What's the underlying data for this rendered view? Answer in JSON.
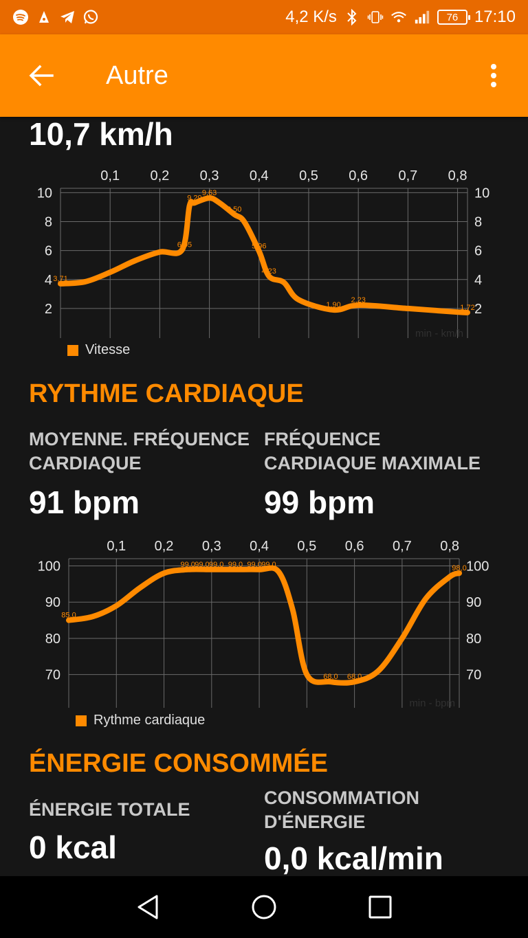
{
  "status_bar": {
    "speed": "4,2 K/s",
    "battery": "76",
    "time": "17:10",
    "icons": [
      "spotify-icon",
      "notification-icon",
      "telegram-icon",
      "whatsapp-icon",
      "bluetooth-icon",
      "vibrate-icon",
      "wifi-icon",
      "signal-icon"
    ]
  },
  "app_bar": {
    "title": "Autre",
    "back_icon": "arrow-left-icon",
    "menu_icon": "more-vert-icon"
  },
  "speed_section": {
    "value": "10,7 km/h"
  },
  "heart_section": {
    "title": "RYTHME CARDIAQUE",
    "avg_label": "MOYENNE. FRÉQUENCE CARDIAQUE",
    "avg_value": "91 bpm",
    "max_label": "FRÉQUENCE CARDIAQUE MAXIMALE",
    "max_value": "99 bpm"
  },
  "energy_section": {
    "title": "ÉNERGIE CONSOMMÉE",
    "total_label": "ÉNERGIE TOTALE",
    "total_value": "0 kcal",
    "rate_label": "CONSOMMATION D'ÉNERGIE",
    "rate_value": "0,0 kcal/min"
  },
  "colors": {
    "accent": "#ff8a00",
    "status_bar": "#e86a00",
    "background": "#161616",
    "grid": "#6a6a6a"
  },
  "chart_data": [
    {
      "type": "line",
      "name": "speed",
      "legend": "Vitesse",
      "unit_label": "min - km/h",
      "x_ticks": [
        "0,1",
        "0,2",
        "0,3",
        "0,4",
        "0,5",
        "0,6",
        "0,7",
        "0,8"
      ],
      "y_ticks": [
        "10",
        "8",
        "6",
        "4",
        "2"
      ],
      "xlim": [
        0.0,
        0.82
      ],
      "ylim": [
        1.0,
        10.3
      ],
      "grid": true,
      "legend_position": "bottom-left",
      "series": [
        {
          "name": "Vitesse",
          "x": [
            0.0,
            0.05,
            0.1,
            0.15,
            0.2,
            0.245,
            0.26,
            0.27,
            0.3,
            0.32,
            0.35,
            0.37,
            0.4,
            0.42,
            0.45,
            0.48,
            0.55,
            0.6,
            0.7,
            0.8,
            0.82
          ],
          "y": [
            3.71,
            3.85,
            4.5,
            5.3,
            5.9,
            6.05,
            9.1,
            9.29,
            9.63,
            9.3,
            8.5,
            8.0,
            5.96,
            4.23,
            3.8,
            2.6,
            1.9,
            2.23,
            2.0,
            1.75,
            1.72
          ]
        }
      ],
      "point_labels": [
        {
          "x": 0.0,
          "y": 3.71,
          "text": "3,71"
        },
        {
          "x": 0.25,
          "y": 6.05,
          "text": "6,05"
        },
        {
          "x": 0.27,
          "y": 9.29,
          "text": "9,29"
        },
        {
          "x": 0.3,
          "y": 9.63,
          "text": "9,63"
        },
        {
          "x": 0.35,
          "y": 8.5,
          "text": "8,50"
        },
        {
          "x": 0.4,
          "y": 5.96,
          "text": "5,96"
        },
        {
          "x": 0.42,
          "y": 4.23,
          "text": "4,23"
        },
        {
          "x": 0.55,
          "y": 1.9,
          "text": "1,90"
        },
        {
          "x": 0.6,
          "y": 2.23,
          "text": "2,23"
        },
        {
          "x": 0.82,
          "y": 1.72,
          "text": "1,72"
        }
      ]
    },
    {
      "type": "line",
      "name": "heart_rate",
      "legend": "Rythme cardiaque",
      "unit_label": "min - bpm",
      "x_ticks": [
        "0,1",
        "0,2",
        "0,3",
        "0,4",
        "0,5",
        "0,6",
        "0,7",
        "0,8"
      ],
      "y_ticks": [
        "100",
        "90",
        "80",
        "70"
      ],
      "xlim": [
        0.0,
        0.82
      ],
      "ylim": [
        65.0,
        102.0
      ],
      "grid": true,
      "legend_position": "bottom-left",
      "series": [
        {
          "name": "Rythme cardiaque",
          "x": [
            0.0,
            0.05,
            0.1,
            0.15,
            0.2,
            0.25,
            0.3,
            0.35,
            0.4,
            0.44,
            0.47,
            0.5,
            0.55,
            0.6,
            0.65,
            0.7,
            0.75,
            0.8,
            0.82
          ],
          "y": [
            85.0,
            86.0,
            89.0,
            94.0,
            98.0,
            99.0,
            99.0,
            99.0,
            99.0,
            98.5,
            88.0,
            70.0,
            68.0,
            68.0,
            71.0,
            80.0,
            91.0,
            97.0,
            98.0
          ]
        }
      ],
      "point_labels": [
        {
          "x": 0.0,
          "y": 85.0,
          "text": "85,0"
        },
        {
          "x": 0.25,
          "y": 99.0,
          "text": "99,0"
        },
        {
          "x": 0.28,
          "y": 99.0,
          "text": "99,0"
        },
        {
          "x": 0.31,
          "y": 99.0,
          "text": "99,0"
        },
        {
          "x": 0.35,
          "y": 99.0,
          "text": "99,0"
        },
        {
          "x": 0.39,
          "y": 99.0,
          "text": "99,0"
        },
        {
          "x": 0.42,
          "y": 99.0,
          "text": "99,0"
        },
        {
          "x": 0.55,
          "y": 68.0,
          "text": "68,0"
        },
        {
          "x": 0.6,
          "y": 68.0,
          "text": "68,0"
        },
        {
          "x": 0.82,
          "y": 98.0,
          "text": "98,0"
        }
      ]
    }
  ]
}
